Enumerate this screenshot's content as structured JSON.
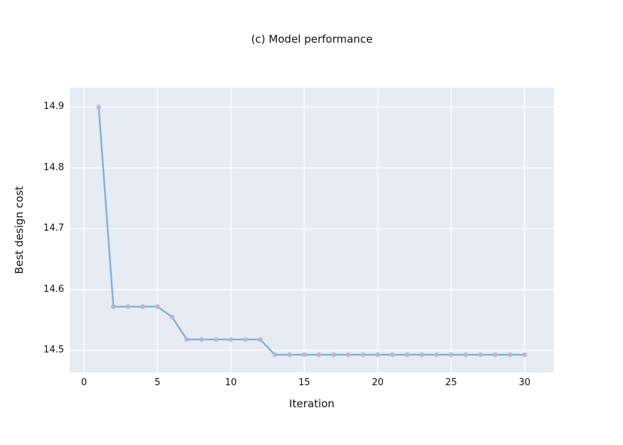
{
  "chart_data": {
    "type": "line",
    "title": "(c) Model performance",
    "xlabel": "Iteration",
    "ylabel": "Best design cost",
    "x": [
      1,
      2,
      3,
      4,
      5,
      6,
      7,
      8,
      9,
      10,
      11,
      12,
      13,
      14,
      15,
      16,
      17,
      18,
      19,
      20,
      21,
      22,
      23,
      24,
      25,
      26,
      27,
      28,
      29,
      30
    ],
    "y": [
      14.9,
      14.572,
      14.572,
      14.572,
      14.572,
      14.555,
      14.518,
      14.518,
      14.518,
      14.518,
      14.518,
      14.518,
      14.493,
      14.493,
      14.493,
      14.493,
      14.493,
      14.493,
      14.493,
      14.493,
      14.493,
      14.493,
      14.493,
      14.493,
      14.493,
      14.493,
      14.493,
      14.493,
      14.493,
      14.493
    ],
    "xticks": [
      0,
      5,
      10,
      15,
      20,
      25,
      30
    ],
    "xtick_labels": [
      "0",
      "5",
      "10",
      "15",
      "20",
      "25",
      "30"
    ],
    "yticks": [
      14.5,
      14.6,
      14.7,
      14.8,
      14.9
    ],
    "ytick_labels": [
      "14.5",
      "14.6",
      "14.7",
      "14.8",
      "14.9"
    ],
    "xlim": [
      -0.97,
      32.0
    ],
    "ylim": [
      14.464,
      14.932
    ],
    "grid": true,
    "legend_position": "none",
    "style": {
      "panel_bg": "#e7ebf4",
      "grid_color": "#ffffff",
      "line_color": "#7fafd8",
      "marker_color": "#b9b6da",
      "text_color": "#111111",
      "page_bg": "#ffffff"
    }
  }
}
